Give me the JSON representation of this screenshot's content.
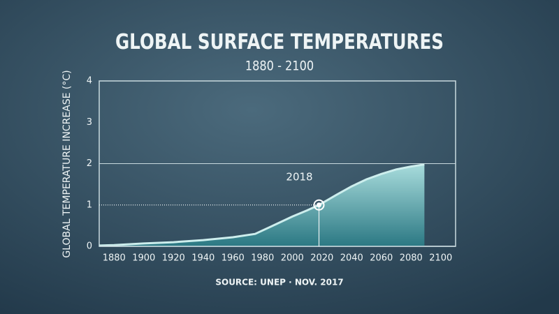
{
  "chart_data": {
    "type": "area",
    "title": "GLOBAL SURFACE TEMPERATURES",
    "subtitle": "1880 - 2100",
    "y_label": "GLOBAL TEMPERATURE INCREASE (°C)",
    "source": "SOURCE: UNEP · NOV. 2017",
    "x": [
      1870,
      1880,
      1900,
      1920,
      1940,
      1960,
      1975,
      1990,
      2000,
      2010,
      2018,
      2030,
      2040,
      2050,
      2060,
      2070,
      2080,
      2089
    ],
    "values": [
      0.02,
      0.03,
      0.07,
      0.1,
      0.15,
      0.22,
      0.3,
      0.55,
      0.72,
      0.87,
      1.0,
      1.25,
      1.45,
      1.62,
      1.75,
      1.86,
      1.93,
      1.98
    ],
    "color": "#cdeeed",
    "xlim": [
      1870,
      2110
    ],
    "xticks": [
      1880,
      1900,
      1920,
      1940,
      1960,
      1980,
      2000,
      2020,
      2040,
      2060,
      2080,
      2100
    ],
    "ylim": [
      0,
      4
    ],
    "yticks": [
      0,
      1,
      2,
      3,
      4
    ],
    "reference_lines": [
      2
    ],
    "annotation": {
      "x": 2018,
      "y": 1
    }
  }
}
